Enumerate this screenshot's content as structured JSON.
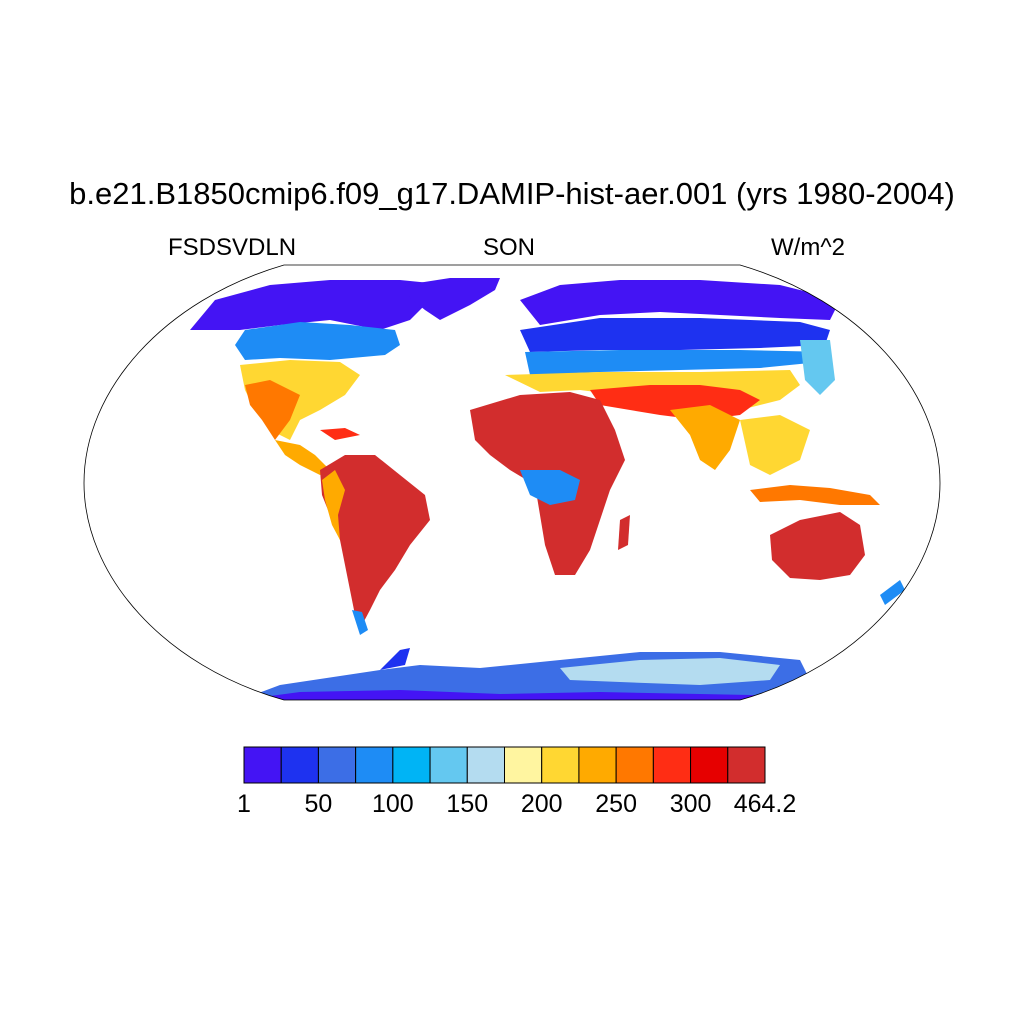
{
  "header": {
    "title": "b.e21.B1850cmip6.f09_g17.DAMIP-hist-aer.001 (yrs 1980-2004)",
    "left_label": "FSDSVDLN",
    "center_label": "SON",
    "right_label": "W/m^2"
  },
  "map": {
    "projection": "Robinson",
    "variable": "FSDSVDLN",
    "season": "SON",
    "units": "W/m^2"
  },
  "colorbar": {
    "colors": [
      "#4414f4",
      "#1e32f0",
      "#3c6ee6",
      "#1e8cf5",
      "#00b4f5",
      "#64c8f0",
      "#b4dcf0",
      "#fff5a0",
      "#ffd732",
      "#ffaa00",
      "#ff7800",
      "#ff2d14",
      "#e60000",
      "#d22d2d"
    ],
    "tick_labels": [
      "1",
      "50",
      "100",
      "150",
      "200",
      "250",
      "300",
      "464.2"
    ]
  }
}
